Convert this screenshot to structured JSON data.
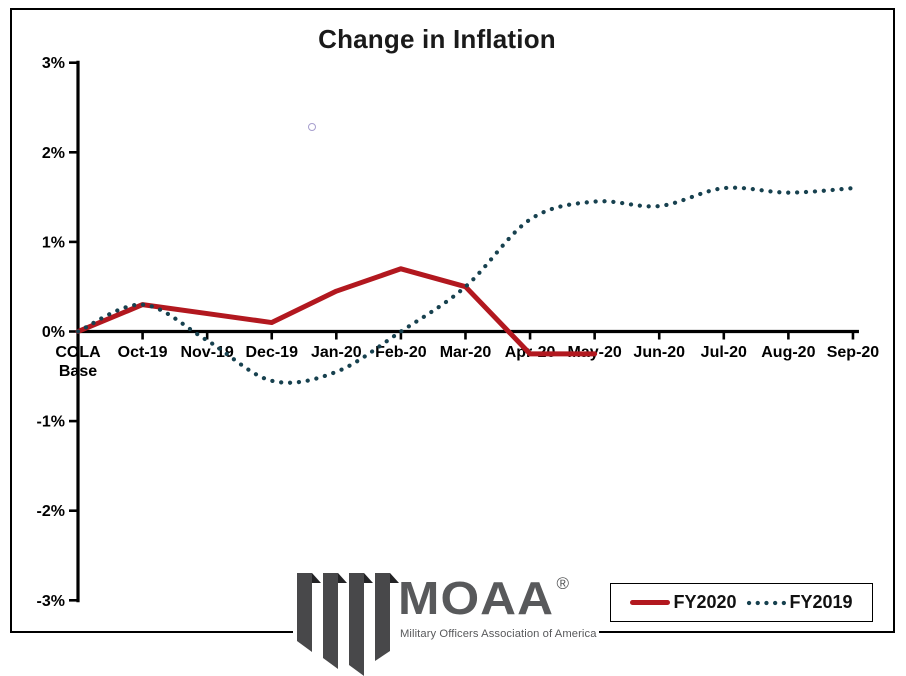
{
  "title": "Change in Inflation",
  "chart_data": {
    "type": "line",
    "title": "Change in Inflation",
    "categories": [
      "COLA\nBase",
      "Oct-19",
      "Nov-19",
      "Dec-19",
      "Jan-20",
      "Feb-20",
      "Mar-20",
      "Apr-20",
      "May-20",
      "Jun-20",
      "Jul-20",
      "Aug-20",
      "Sep-20"
    ],
    "y_tick_values": [
      3,
      2,
      1,
      0,
      -1,
      -2,
      -3
    ],
    "y_tick_labels": [
      "3%",
      "2%",
      "1%",
      "0%",
      "-1%",
      "-2%",
      "-3%"
    ],
    "ylim": [
      -3,
      3
    ],
    "xlabel": "",
    "ylabel": "",
    "grid": false,
    "legend_position": "bottom-right",
    "series": [
      {
        "name": "FY2020",
        "color": "#b2181f",
        "style": "solid",
        "smooth": false,
        "values": [
          0,
          0.3,
          0.2,
          0.1,
          0.45,
          0.7,
          0.5,
          -0.25,
          -0.25,
          null,
          null,
          null,
          null
        ]
      },
      {
        "name": "FY2019",
        "color": "#17414f",
        "style": "dotted",
        "smooth": true,
        "values": [
          0,
          0.3,
          -0.1,
          -0.55,
          -0.45,
          0,
          0.5,
          1.25,
          1.45,
          1.4,
          1.6,
          1.55,
          1.6
        ]
      }
    ]
  },
  "logo": {
    "wordmark": "MOAA",
    "registered": "®",
    "tagline": "Military Officers Association of America",
    "gray": "#58595b",
    "emblem_gray": "#48484a",
    "emblem_fold": "#232325"
  },
  "artifact_ring": {
    "color": "#a79fce"
  },
  "frame_border_color": "#000000"
}
